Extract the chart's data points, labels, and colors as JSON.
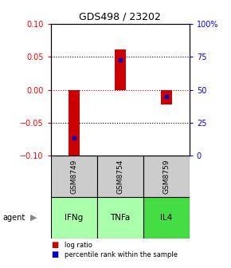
{
  "title": "GDS498 / 23202",
  "samples": [
    "GSM8749",
    "GSM8754",
    "GSM8759"
  ],
  "agents": [
    "IFNg",
    "TNFa",
    "IL4"
  ],
  "log_ratios": [
    -0.102,
    0.062,
    -0.022
  ],
  "percentile_ranks": [
    13,
    73,
    45
  ],
  "ylim_left": [
    -0.1,
    0.1
  ],
  "ylim_right": [
    0,
    100
  ],
  "yticks_left": [
    -0.1,
    -0.05,
    0,
    0.05,
    0.1
  ],
  "yticks_right": [
    0,
    25,
    50,
    75,
    100
  ],
  "ytick_labels_right": [
    "0",
    "25",
    "50",
    "75",
    "100%"
  ],
  "bar_color": "#cc0000",
  "percentile_color": "#0000cc",
  "zero_line_color": "#cc0000",
  "sample_bg": "#cccccc",
  "agent_colors": [
    "#aaffaa",
    "#aaffaa",
    "#44dd44"
  ],
  "bar_width": 0.25,
  "legend_bar_label": "log ratio",
  "legend_pct_label": "percentile rank within the sample"
}
